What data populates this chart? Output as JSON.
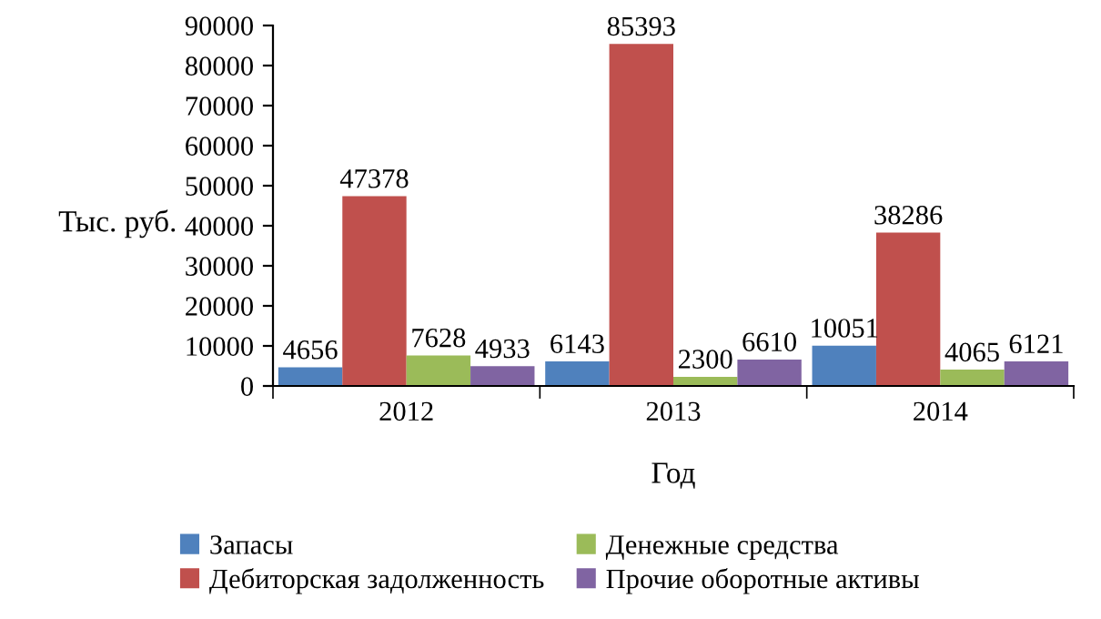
{
  "chart_data": {
    "type": "bar",
    "xlabel": "Год",
    "ylabel": "Тыс. руб.",
    "categories": [
      "2012",
      "2013",
      "2014"
    ],
    "series": [
      {
        "name": "Запасы",
        "color": "#4f81bd",
        "values": [
          4656,
          6143,
          10051
        ]
      },
      {
        "name": "Дебиторская задолженность",
        "color": "#c0504d",
        "values": [
          47378,
          85393,
          38286
        ]
      },
      {
        "name": "Денежные средства",
        "color": "#9bbb59",
        "values": [
          7628,
          2300,
          4065
        ]
      },
      {
        "name": "Прочие оборотные активы",
        "color": "#8064a2",
        "values": [
          4933,
          6610,
          6121
        ]
      }
    ],
    "ylim": [
      0,
      90000
    ],
    "yticks": [
      0,
      10000,
      20000,
      30000,
      40000,
      50000,
      60000,
      70000,
      80000,
      90000
    ],
    "grid": false,
    "legend": "bottom",
    "data_labels": true
  }
}
